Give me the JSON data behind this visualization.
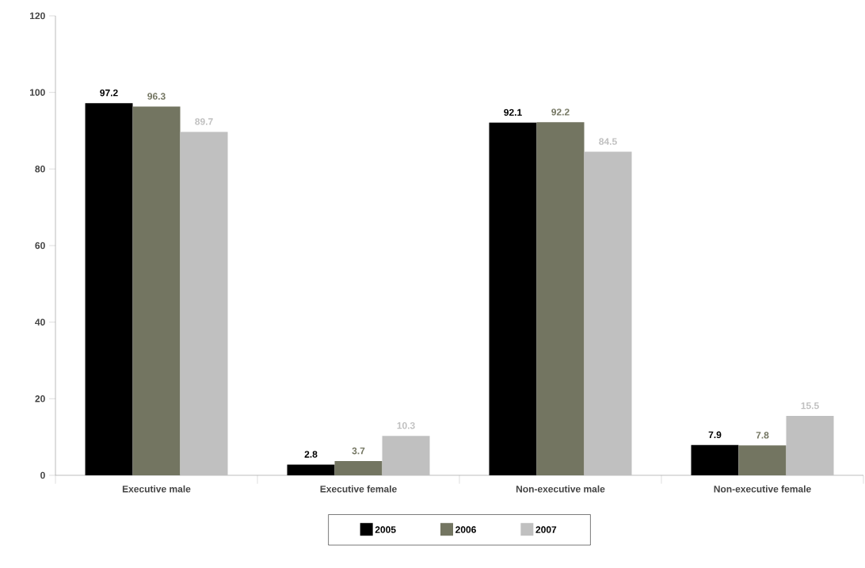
{
  "chart_data": {
    "type": "bar",
    "categories": [
      "Executive male",
      "Executive female",
      "Non-executive male",
      "Non-executive female"
    ],
    "series": [
      {
        "name": "2005",
        "color": "#000000",
        "values": [
          97.2,
          2.8,
          92.1,
          7.9
        ]
      },
      {
        "name": "2006",
        "color": "#737561",
        "values": [
          96.3,
          3.7,
          92.2,
          7.8
        ]
      },
      {
        "name": "2007",
        "color": "#c0c0c0",
        "values": [
          89.7,
          10.3,
          84.5,
          15.5
        ]
      }
    ],
    "ylim": [
      0,
      120
    ],
    "yticks": [
      0,
      20,
      40,
      60,
      80,
      100,
      120
    ],
    "grid": false,
    "legend": "bottom",
    "data_labels": true
  }
}
